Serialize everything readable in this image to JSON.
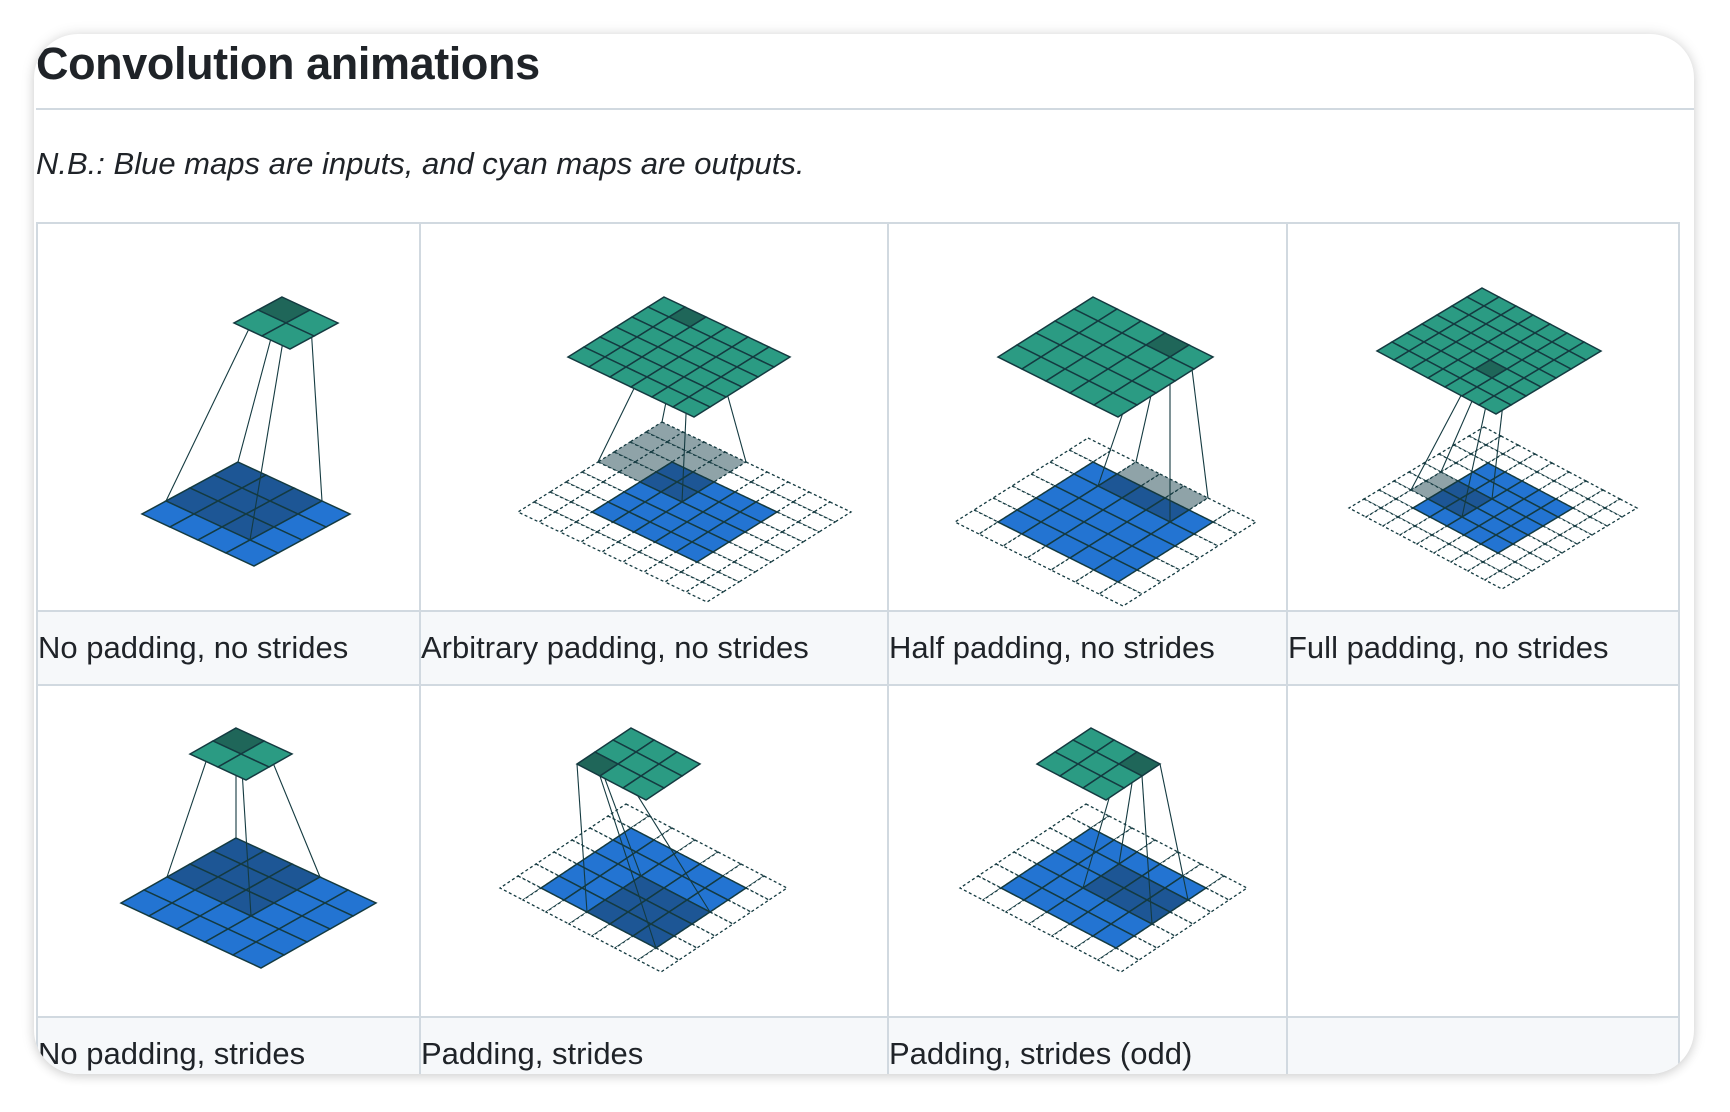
{
  "heading": "Convolution animations",
  "note": "N.B.: Blue maps are inputs, and cyan maps are outputs.",
  "colors": {
    "input": "#2374d2",
    "input_highlight": "#1d5695",
    "output": "#2b9b83",
    "output_highlight": "#1f6659",
    "padding_highlight": "#8fa3a8",
    "grid_line": "#143a40",
    "border": "#d1d9e0",
    "caption_bg": "#f6f8fa"
  },
  "cells": [
    {
      "caption": "No padding, no strides"
    },
    {
      "caption": "Arbitrary padding, no strides"
    },
    {
      "caption": "Half padding, no strides"
    },
    {
      "caption": "Full padding, no strides"
    },
    {
      "caption": "No padding, strides"
    },
    {
      "caption": "Padding, strides"
    },
    {
      "caption": "Padding, strides (odd)"
    },
    {
      "caption": ""
    }
  ]
}
